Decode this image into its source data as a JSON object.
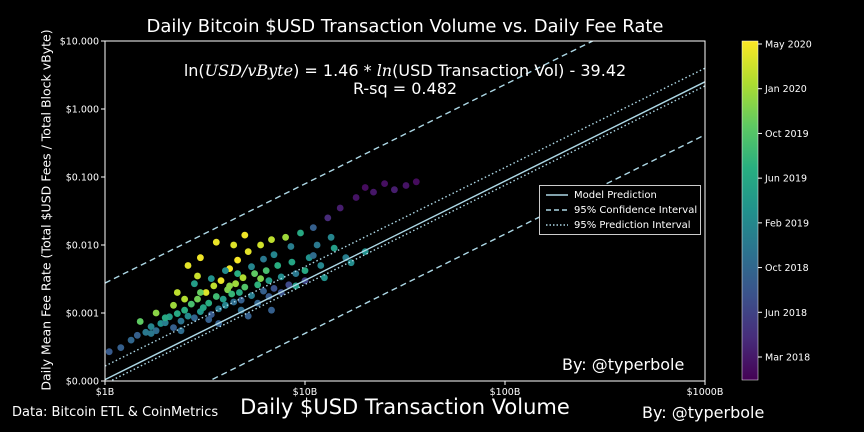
{
  "chart_data": {
    "type": "scatter",
    "title": "Daily Bitcoin $USD Transaction Volume vs. Daily Fee Rate",
    "xlabel": "Daily $USD Transaction Volume",
    "ylabel": "Daily Mean Fee Rate (Total $USD Fees / Total Block vByte)",
    "x_scale": "log",
    "y_scale": "log",
    "xlim": [
      1000000000,
      1000000000000
    ],
    "ylim": [
      0.0001,
      10
    ],
    "x_ticks": [
      {
        "value": 1000000000,
        "label": "$1B"
      },
      {
        "value": 10000000000,
        "label": "$10B"
      },
      {
        "value": 100000000000,
        "label": "$100B"
      },
      {
        "value": 1000000000000,
        "label": "$1000B"
      }
    ],
    "y_ticks": [
      {
        "value": 0.0001,
        "label": "$0.000"
      },
      {
        "value": 0.001,
        "label": "$0.001"
      },
      {
        "value": 0.01,
        "label": "$0.010"
      },
      {
        "value": 0.1,
        "label": "$0.100"
      },
      {
        "value": 1,
        "label": "$1.000"
      },
      {
        "value": 10,
        "label": "$10.000"
      }
    ],
    "equation": {
      "lhs_prefix": "ln(",
      "lhs_var": "USD/vByte",
      "middle": ") = 1.46 * ",
      "fn": "ln",
      "rhs": "(USD Transaction Vol) - 39.42"
    },
    "r_squared": "R-sq = 0.482",
    "model": {
      "slope": 1.46,
      "intercept": -39.42
    },
    "intervals": {
      "confidence_upper_log10_offset": 1.42,
      "confidence_lower_log10_offset": -0.78,
      "prediction_upper_log10_offset": 0.2,
      "prediction_lower_log10_offset": -0.06
    },
    "legend": {
      "placement": "center-right",
      "entries": [
        {
          "label": "Model Prediction",
          "style": "solid"
        },
        {
          "label": "95% Confidence Interval",
          "style": "dashed"
        },
        {
          "label": "95% Prediction Interval",
          "style": "dotted"
        }
      ]
    },
    "line_color": "#add8e6",
    "colorbar": {
      "colormap": "viridis",
      "ticks": [
        "May 2020",
        "Jan 2020",
        "Oct 2019",
        "Jun 2019",
        "Feb 2019",
        "Oct 2018",
        "Jun 2018",
        "Mar 2018"
      ]
    },
    "series": [
      {
        "point_format": "[x_usd, y_usd_per_vbyte, time_fraction]",
        "points": [
          [
            1050000000.0,
            0.00027,
            0.28
          ],
          [
            1200000000.0,
            0.00031,
            0.3
          ],
          [
            1350000000.0,
            0.0004,
            0.33
          ],
          [
            1450000000.0,
            0.00047,
            0.3
          ],
          [
            1600000000.0,
            0.00052,
            0.4
          ],
          [
            1700000000.0,
            0.00063,
            0.45
          ],
          [
            1800000000.0,
            0.00055,
            0.35
          ],
          [
            1900000000.0,
            0.0007,
            0.5
          ],
          [
            2000000000.0,
            0.00072,
            0.42
          ],
          [
            2100000000.0,
            0.00088,
            0.55
          ],
          [
            2200000000.0,
            0.00061,
            0.3
          ],
          [
            2300000000.0,
            0.00098,
            0.6
          ],
          [
            2400000000.0,
            0.00076,
            0.38
          ],
          [
            2500000000.0,
            0.0011,
            0.62
          ],
          [
            2600000000.0,
            0.0009,
            0.47
          ],
          [
            2700000000.0,
            0.00135,
            0.7
          ],
          [
            2800000000.0,
            0.00085,
            0.33
          ],
          [
            2900000000.0,
            0.0016,
            0.78
          ],
          [
            3000000000.0,
            0.00105,
            0.52
          ],
          [
            3100000000.0,
            0.0012,
            0.58
          ],
          [
            3200000000.0,
            0.002,
            0.95
          ],
          [
            3300000000.0,
            0.0014,
            0.62
          ],
          [
            3400000000.0,
            0.00095,
            0.28
          ],
          [
            3500000000.0,
            0.0025,
            0.9
          ],
          [
            3600000000.0,
            0.00175,
            0.68
          ],
          [
            3700000000.0,
            0.00115,
            0.4
          ],
          [
            3800000000.0,
            0.003,
            0.97
          ],
          [
            3900000000.0,
            0.0016,
            0.55
          ],
          [
            4000000000.0,
            0.0013,
            0.45
          ],
          [
            4100000000.0,
            0.0022,
            0.8
          ],
          [
            4200000000.0,
            0.0045,
            0.98
          ],
          [
            4300000000.0,
            0.0019,
            0.66
          ],
          [
            4400000000.0,
            0.00145,
            0.35
          ],
          [
            4500000000.0,
            0.0027,
            0.85
          ],
          [
            4600000000.0,
            0.006,
            0.99
          ],
          [
            4700000000.0,
            0.002,
            0.6
          ],
          [
            4800000000.0,
            0.00155,
            0.3
          ],
          [
            4900000000.0,
            0.0033,
            0.88
          ],
          [
            5000000000.0,
            0.0024,
            0.72
          ],
          [
            5200000000.0,
            0.008,
            0.96
          ],
          [
            5400000000.0,
            0.0018,
            0.42
          ],
          [
            5600000000.0,
            0.0038,
            0.75
          ],
          [
            5800000000.0,
            0.0026,
            0.64
          ],
          [
            6000000000.0,
            0.01,
            0.93
          ],
          [
            6200000000.0,
            0.0021,
            0.3
          ],
          [
            6400000000.0,
            0.0042,
            0.7
          ],
          [
            6600000000.0,
            0.003,
            0.55
          ],
          [
            6800000000.0,
            0.012,
            0.9
          ],
          [
            7000000000.0,
            0.0023,
            0.25
          ],
          [
            7300000000.0,
            0.005,
            0.62
          ],
          [
            7600000000.0,
            0.0034,
            0.48
          ],
          [
            8000000000.0,
            0.013,
            0.85
          ],
          [
            8300000000.0,
            0.0026,
            0.22
          ],
          [
            8600000000.0,
            0.0056,
            0.58
          ],
          [
            9000000000.0,
            0.0038,
            0.4
          ],
          [
            9500000000.0,
            0.015,
            0.6
          ],
          [
            10000000000.0,
            0.003,
            0.2
          ],
          [
            10500000000.0,
            0.0065,
            0.5
          ],
          [
            11000000000.0,
            0.018,
            0.3
          ],
          [
            12000000000.0,
            0.005,
            0.45
          ],
          [
            13000000000.0,
            0.025,
            0.12
          ],
          [
            14000000000.0,
            0.009,
            0.55
          ],
          [
            15000000000.0,
            0.035,
            0.08
          ],
          [
            16000000000.0,
            0.0065,
            0.42
          ],
          [
            18000000000.0,
            0.05,
            0.05
          ],
          [
            20000000000.0,
            0.07,
            0.03
          ],
          [
            22000000000.0,
            0.06,
            0.06
          ],
          [
            25000000000.0,
            0.08,
            0.04
          ],
          [
            28000000000.0,
            0.065,
            0.08
          ],
          [
            32000000000.0,
            0.075,
            0.05
          ],
          [
            36000000000.0,
            0.085,
            0.03
          ],
          [
            2300000000.0,
            0.002,
            0.9
          ],
          [
            2600000000.0,
            0.005,
            0.96
          ],
          [
            3000000000.0,
            0.0065,
            0.98
          ],
          [
            3600000000.0,
            0.011,
            0.97
          ],
          [
            2900000000.0,
            0.0035,
            0.92
          ],
          [
            4400000000.0,
            0.01,
            0.95
          ],
          [
            5000000000.0,
            0.014,
            0.98
          ],
          [
            3300000000.0,
            0.0008,
            0.3
          ],
          [
            4800000000.0,
            0.0011,
            0.35
          ],
          [
            5800000000.0,
            0.0014,
            0.32
          ],
          [
            6600000000.0,
            0.00175,
            0.28
          ],
          [
            7600000000.0,
            0.002,
            0.25
          ],
          [
            1500000000.0,
            0.00075,
            0.75
          ],
          [
            1800000000.0,
            0.001,
            0.82
          ],
          [
            2200000000.0,
            0.0013,
            0.85
          ],
          [
            2500000000.0,
            0.0016,
            0.88
          ],
          [
            2800000000.0,
            0.0027,
            0.55
          ],
          [
            3400000000.0,
            0.0032,
            0.5
          ],
          [
            4000000000.0,
            0.0042,
            0.48
          ],
          [
            4600000000.0,
            0.0038,
            0.62
          ],
          [
            5400000000.0,
            0.0048,
            0.45
          ],
          [
            6200000000.0,
            0.0062,
            0.4
          ],
          [
            7000000000.0,
            0.0072,
            0.45
          ],
          [
            8500000000.0,
            0.0095,
            0.42
          ],
          [
            11500000000.0,
            0.01,
            0.4
          ],
          [
            13500000000.0,
            0.013,
            0.45
          ],
          [
            10000000000.0,
            0.0042,
            0.6
          ],
          [
            12500000000.0,
            0.0033,
            0.5
          ],
          [
            17000000000.0,
            0.0055,
            0.48
          ],
          [
            20000000000.0,
            0.008,
            0.5
          ],
          [
            9000000000.0,
            0.0025,
            0.55
          ],
          [
            6000000000.0,
            0.0032,
            0.8
          ],
          [
            4200000000.0,
            0.0025,
            0.82
          ],
          [
            3000000000.0,
            0.002,
            0.76
          ],
          [
            2000000000.0,
            0.00085,
            0.6
          ],
          [
            1700000000.0,
            0.0005,
            0.4
          ],
          [
            2400000000.0,
            0.00055,
            0.35
          ],
          [
            3700000000.0,
            0.0007,
            0.3
          ],
          [
            5200000000.0,
            0.0009,
            0.3
          ],
          [
            6800000000.0,
            0.0011,
            0.3
          ],
          [
            11000000000.0,
            0.007,
            0.35
          ]
        ]
      }
    ]
  },
  "credits": {
    "inside": "By: @typerbole",
    "bottom": "By: @typerbole",
    "source": "Data: Bitcoin ETL & CoinMetrics"
  }
}
